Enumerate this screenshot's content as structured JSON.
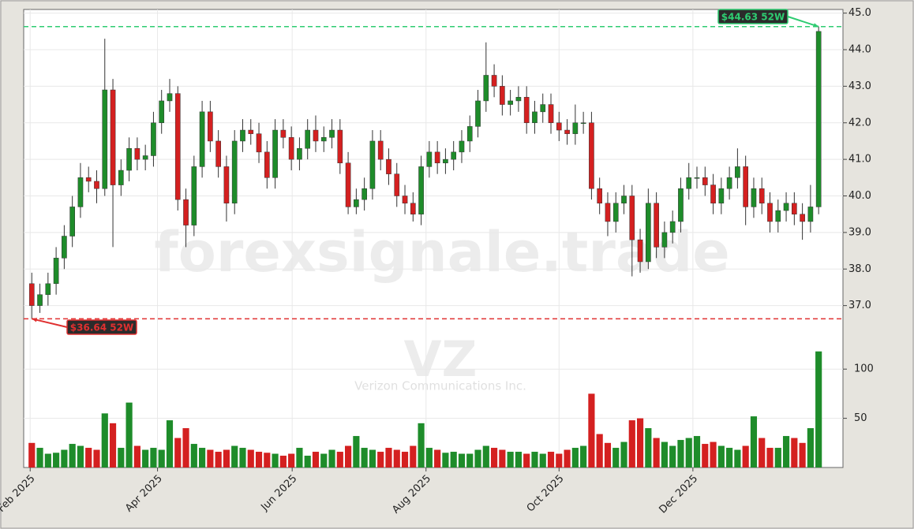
{
  "chart_data": {
    "type": "candlestick",
    "open": [
      37.6,
      37.0,
      37.3,
      37.6,
      38.3,
      38.9,
      39.7,
      40.5,
      40.4,
      40.2,
      42.9,
      40.3,
      40.7,
      41.3,
      41.0,
      41.1,
      42.0,
      42.6,
      42.8,
      39.9,
      39.2,
      40.8,
      42.3,
      41.5,
      40.8,
      39.8,
      41.5,
      41.8,
      41.7,
      41.2,
      40.5,
      41.8,
      41.6,
      41.0,
      41.3,
      41.8,
      41.5,
      41.6,
      41.8,
      40.9,
      39.7,
      39.9,
      40.2,
      41.5,
      41.0,
      40.6,
      40.0,
      39.8,
      39.5,
      40.8,
      41.2,
      40.9,
      41.0,
      41.2,
      41.5,
      41.9,
      42.6,
      43.3,
      43.0,
      42.5,
      42.6,
      42.7,
      42.0,
      42.3,
      42.5,
      42.0,
      41.8,
      41.7,
      42.0,
      42.0,
      40.2,
      39.8,
      39.3,
      39.8,
      40.0,
      38.8,
      38.2,
      39.8,
      38.6,
      39.0,
      39.3,
      40.2,
      40.5,
      40.5,
      40.3,
      39.8,
      40.2,
      40.5,
      40.8,
      39.7,
      40.2,
      39.8,
      39.3,
      39.6,
      39.8,
      39.5,
      39.3,
      39.7
    ],
    "high": [
      37.9,
      37.6,
      37.9,
      38.6,
      39.2,
      40.0,
      40.9,
      40.8,
      40.7,
      44.3,
      43.2,
      41.0,
      41.6,
      41.6,
      41.4,
      42.3,
      42.9,
      43.2,
      43.0,
      40.2,
      41.1,
      42.6,
      42.6,
      41.8,
      41.1,
      41.8,
      42.1,
      42.1,
      42.0,
      41.5,
      42.1,
      42.1,
      41.9,
      41.6,
      42.1,
      42.2,
      41.9,
      42.1,
      42.1,
      41.2,
      40.2,
      40.5,
      41.8,
      41.8,
      41.3,
      40.9,
      40.3,
      40.1,
      41.1,
      41.5,
      41.5,
      41.3,
      41.5,
      41.8,
      42.2,
      42.9,
      44.2,
      43.6,
      43.3,
      42.9,
      43.0,
      43.0,
      42.6,
      42.8,
      42.8,
      42.3,
      42.1,
      42.5,
      42.3,
      42.3,
      40.5,
      40.1,
      40.1,
      40.3,
      40.3,
      39.1,
      40.2,
      40.1,
      39.3,
      39.6,
      40.5,
      40.9,
      40.8,
      40.8,
      40.6,
      40.5,
      40.8,
      41.3,
      41.1,
      40.5,
      40.5,
      40.1,
      39.9,
      40.1,
      40.1,
      39.8,
      40.3,
      44.63
    ],
    "low": [
      36.64,
      36.8,
      37.0,
      37.3,
      38.0,
      38.6,
      39.4,
      40.1,
      39.8,
      40.0,
      38.6,
      40.0,
      40.4,
      40.7,
      40.7,
      40.8,
      41.7,
      42.3,
      39.6,
      38.6,
      38.9,
      40.5,
      41.2,
      40.5,
      39.3,
      39.5,
      41.2,
      41.4,
      40.9,
      40.2,
      40.2,
      41.3,
      40.7,
      40.7,
      41.0,
      41.2,
      41.2,
      41.3,
      40.6,
      39.5,
      39.5,
      39.6,
      39.9,
      40.7,
      40.3,
      39.7,
      39.5,
      39.3,
      39.2,
      40.5,
      40.6,
      40.6,
      40.7,
      40.9,
      41.2,
      41.6,
      42.3,
      42.7,
      42.2,
      42.2,
      42.3,
      41.7,
      41.7,
      42.0,
      41.7,
      41.5,
      41.4,
      41.4,
      41.7,
      39.9,
      39.5,
      38.9,
      39.0,
      39.5,
      37.8,
      37.9,
      38.0,
      38.3,
      38.3,
      38.7,
      39.0,
      39.9,
      40.2,
      40.0,
      39.5,
      39.5,
      39.9,
      40.2,
      39.2,
      39.4,
      39.5,
      39.0,
      39.0,
      39.3,
      39.2,
      38.8,
      39.0,
      39.5
    ],
    "close": [
      37.0,
      37.3,
      37.6,
      38.3,
      38.9,
      39.7,
      40.5,
      40.4,
      40.2,
      42.9,
      40.3,
      40.7,
      41.3,
      41.0,
      41.1,
      42.0,
      42.6,
      42.8,
      39.9,
      39.2,
      40.8,
      42.3,
      41.5,
      40.8,
      39.8,
      41.5,
      41.8,
      41.7,
      41.2,
      40.5,
      41.8,
      41.6,
      41.0,
      41.3,
      41.8,
      41.5,
      41.6,
      41.8,
      40.9,
      39.7,
      39.9,
      40.2,
      41.5,
      41.0,
      40.6,
      40.0,
      39.8,
      39.5,
      40.8,
      41.2,
      40.9,
      41.0,
      41.2,
      41.5,
      41.9,
      42.6,
      43.3,
      43.0,
      42.5,
      42.6,
      42.7,
      42.0,
      42.3,
      42.5,
      42.0,
      41.8,
      41.7,
      42.0,
      42.0,
      40.2,
      39.8,
      39.3,
      39.8,
      40.0,
      38.8,
      38.2,
      39.8,
      38.6,
      39.0,
      39.3,
      40.2,
      40.5,
      40.5,
      40.3,
      39.8,
      40.2,
      40.5,
      40.8,
      39.7,
      40.2,
      39.8,
      39.3,
      39.6,
      39.8,
      39.5,
      39.3,
      39.7,
      44.5
    ],
    "volume": [
      25,
      20,
      14,
      15,
      18,
      24,
      22,
      20,
      18,
      55,
      45,
      20,
      66,
      22,
      18,
      20,
      18,
      48,
      30,
      40,
      24,
      20,
      18,
      16,
      18,
      22,
      20,
      18,
      16,
      15,
      14,
      12,
      14,
      20,
      12,
      16,
      14,
      18,
      16,
      22,
      32,
      20,
      18,
      16,
      20,
      18,
      16,
      22,
      45,
      20,
      18,
      15,
      16,
      14,
      14,
      18,
      22,
      20,
      18,
      16,
      16,
      14,
      16,
      14,
      16,
      14,
      18,
      20,
      22,
      75,
      34,
      25,
      20,
      26,
      48,
      50,
      40,
      30,
      26,
      22,
      28,
      30,
      32,
      24,
      26,
      22,
      20,
      18,
      22,
      52,
      30,
      20,
      20,
      32,
      30,
      25,
      40,
      118
    ],
    "xlim": [
      -1,
      100
    ],
    "xticks": [
      {
        "value": -0.2,
        "label": "Feb 2025"
      },
      {
        "value": 15.5,
        "label": "Apr 2025"
      },
      {
        "value": 32.1,
        "label": "Jun 2025"
      },
      {
        "value": 48.6,
        "label": "Aug 2025"
      },
      {
        "value": 65,
        "label": "Oct 2025"
      },
      {
        "value": 81.5,
        "label": "Dec 2025"
      }
    ],
    "ylim": [
      36.0,
      45.1
    ],
    "yticks": [
      {
        "value": 37,
        "label": "37.0"
      },
      {
        "value": 38,
        "label": "38.0"
      },
      {
        "value": 39,
        "label": "39.0"
      },
      {
        "value": 40,
        "label": "40.0"
      },
      {
        "value": 41,
        "label": "41.0"
      },
      {
        "value": 42,
        "label": "42.0"
      },
      {
        "value": 43,
        "label": "43.0"
      },
      {
        "value": 44,
        "label": "44.0"
      },
      {
        "value": 45,
        "label": "45.0"
      }
    ],
    "volume_ylim": [
      0,
      125
    ],
    "volume_yticks": [
      50,
      100
    ],
    "up_color": "#1e8c2a",
    "down_color": "#d42020",
    "grid": true,
    "annotations": [
      {
        "label": "$44.63 52W",
        "value": 44.63,
        "color": "#2ecc71"
      },
      {
        "label": "$36.64 52W",
        "value": 36.64,
        "color": "#e03030"
      }
    ],
    "watermark": {
      "text": "forexsignale.trade",
      "symbol": "VZ",
      "name": "Verizon Communications Inc."
    }
  }
}
